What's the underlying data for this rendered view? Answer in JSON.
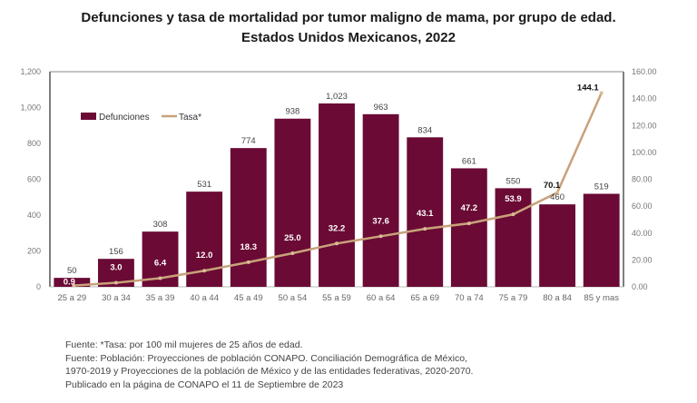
{
  "chart_data": {
    "type": "bar+line",
    "title": "Defunciones y tasa de mortalidad por tumor maligno de mama, por grupo de edad.",
    "subtitle": "Estados Unidos Mexicanos, 2022",
    "categories": [
      "25 a 29",
      "30 a 34",
      "35 a 39",
      "40 a 44",
      "45 a 49",
      "50 a 54",
      "55 a 59",
      "60 a 64",
      "65 a 69",
      "70 a 74",
      "75 a 79",
      "80 a 84",
      "85 y mas"
    ],
    "series": [
      {
        "name": "Defunciones",
        "type": "bar",
        "axis": "left",
        "color": "#6b0a35",
        "values": [
          50,
          156,
          308,
          531,
          774,
          938,
          1023,
          963,
          834,
          661,
          550,
          460,
          519
        ],
        "labels": [
          "50",
          "156",
          "308",
          "531",
          "774",
          "938",
          "1,023",
          "963",
          "834",
          "661",
          "550",
          "460",
          "519"
        ]
      },
      {
        "name": "Tasa*",
        "type": "line",
        "axis": "right",
        "color": "#c8a27a",
        "values": [
          0.9,
          3.0,
          6.4,
          12.0,
          18.3,
          25.0,
          32.2,
          37.6,
          43.1,
          47.2,
          53.9,
          70.1,
          144.1
        ],
        "labels": [
          "0.9",
          "3.0",
          "6.4",
          "12.0",
          "18.3",
          "25.0",
          "32.2",
          "37.6",
          "43.1",
          "47.2",
          "53.9",
          "70.1",
          "144.1"
        ]
      }
    ],
    "left_axis": {
      "ylim": [
        0,
        1200
      ],
      "ticks": [
        "0",
        "200",
        "400",
        "600",
        "800",
        "1,000",
        "1,200"
      ]
    },
    "right_axis": {
      "ylim": [
        0,
        160
      ],
      "ticks": [
        "0.00",
        "20.00",
        "40.00",
        "60.00",
        "80.00",
        "100.00",
        "120.00",
        "140.00",
        "160.00"
      ]
    },
    "legend": {
      "placement": "top-left",
      "items": [
        "Defunciones",
        "Tasa*"
      ]
    },
    "grid": false
  },
  "notes": [
    "Fuente: *Tasa: por 100 mil mujeres de 25 años de edad.",
    "Fuente: Población: Proyecciones de población  CONAPO. Conciliación Demográfica de México,",
    "1970-2019 y Proyecciones de la población de México y de las entidades federativas, 2020-2070.",
    "Publicado en la página de CONAPO el 11 de Septiembre de 2023"
  ]
}
